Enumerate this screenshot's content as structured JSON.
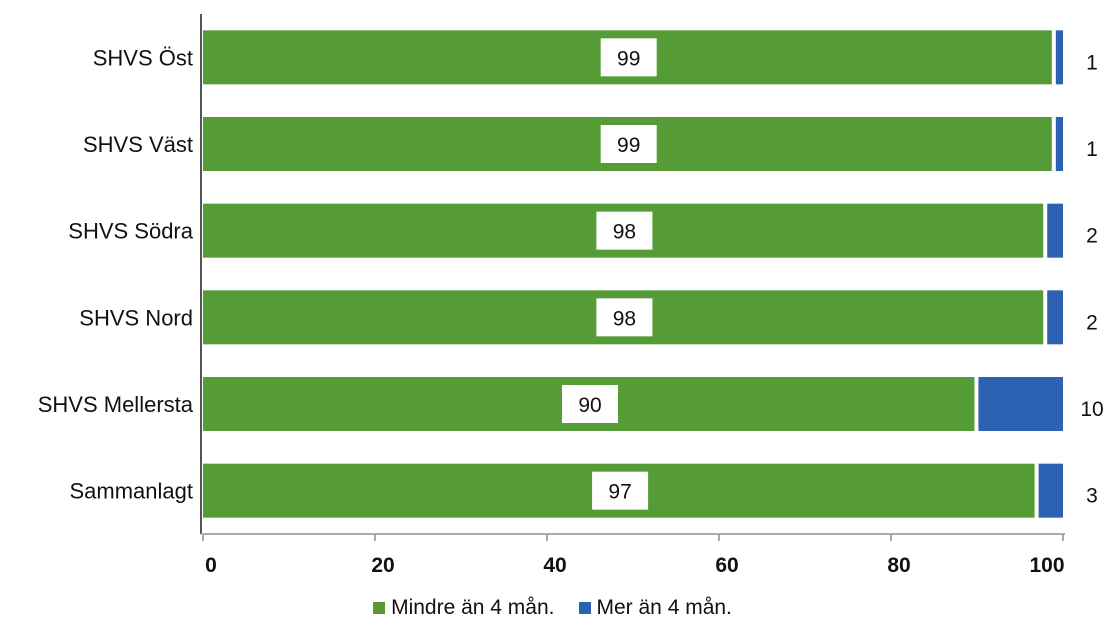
{
  "chart_data": {
    "type": "bar",
    "orientation": "horizontal",
    "stacked": true,
    "categories": [
      "SHVS Öst",
      "SHVS Väst",
      "SHVS Södra",
      "SHVS Nord",
      "SHVS Mellersta",
      "Sammanlagt"
    ],
    "series": [
      {
        "name": "Mindre än 4 mån.",
        "color": "#559c36",
        "values": [
          99,
          99,
          98,
          98,
          90,
          97
        ]
      },
      {
        "name": "Mer än 4 mån.",
        "color": "#2d62b3",
        "values": [
          1,
          1,
          2,
          2,
          10,
          3
        ]
      }
    ],
    "xlim": [
      0,
      100
    ],
    "xticks": [
      "0",
      "20",
      "40",
      "60",
      "80",
      "100"
    ],
    "title": "",
    "xlabel": "",
    "ylabel": "",
    "legend_position": "bottom",
    "grid": false
  }
}
